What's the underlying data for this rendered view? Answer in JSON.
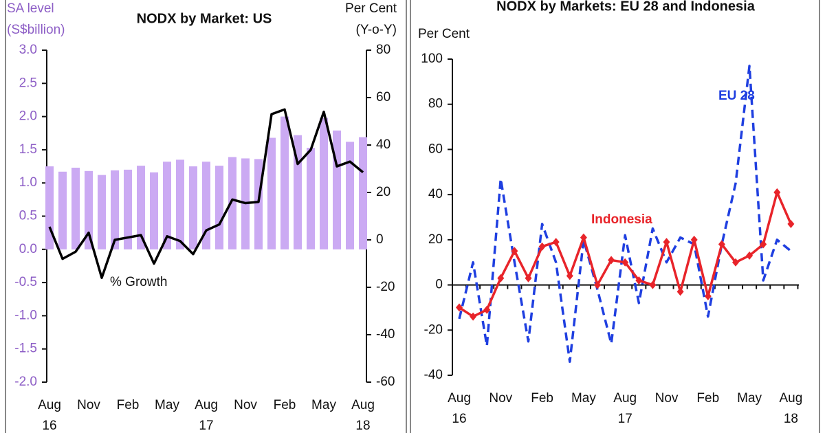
{
  "chart_data": [
    {
      "type": "combo",
      "title": "NODX by Market: US",
      "ylabel": [
        "SA level",
        "(S$billion)"
      ],
      "y2label": [
        "Per Cent",
        "(Y-o-Y)"
      ],
      "categories": [
        "Aug\n16",
        null,
        null,
        "Nov",
        null,
        null,
        "Feb",
        null,
        null,
        "May",
        null,
        null,
        "Aug\n17",
        null,
        null,
        "Nov",
        null,
        null,
        "Feb",
        null,
        null,
        "May",
        null,
        null,
        "Aug\n18"
      ],
      "ylim": [
        -2,
        3
      ],
      "yticks": [
        {
          "value": 3,
          "label": "3.0"
        },
        2.5,
        {
          "value": 2,
          "label": "2.0"
        },
        1.5,
        {
          "value": 1,
          "label": "1.0"
        },
        0.5,
        {
          "value": 0,
          "label": "0.0"
        },
        -0.5,
        {
          "value": -1,
          "label": "-1.0"
        },
        -1.5,
        {
          "value": -2,
          "label": "-2.0"
        }
      ],
      "y2lim": [
        -60,
        80
      ],
      "y2ticks": [
        80,
        60,
        40,
        20,
        0,
        -20,
        -40,
        -60
      ],
      "series": [
        {
          "type": "bar",
          "color": "#cbaaf3",
          "values": [
            1.25,
            1.17,
            1.23,
            1.18,
            1.12,
            1.19,
            1.2,
            1.26,
            1.16,
            1.32,
            1.35,
            1.25,
            1.32,
            1.26,
            1.39,
            1.37,
            1.36,
            1.68,
            2.0,
            1.72,
            1.53,
            1.98,
            1.79,
            1.62,
            1.69
          ]
        },
        {
          "type": "line",
          "axis": "y2",
          "name": "% Growth",
          "color": "#000000",
          "values": [
            5.5,
            -8,
            -5,
            3,
            -16,
            0,
            1,
            2,
            -10,
            1.5,
            -0.5,
            -6,
            4,
            6.5,
            17,
            15.5,
            16,
            53,
            55,
            32,
            38,
            54,
            31,
            33,
            28.5
          ]
        }
      ]
    },
    {
      "type": "line",
      "title": "NODX by Markets: EU 28 and Indonesia",
      "ylabel": [
        "Per Cent"
      ],
      "categories": [
        "Aug\n16",
        null,
        null,
        "Nov",
        null,
        null,
        "Feb",
        null,
        null,
        "May",
        null,
        null,
        "Aug\n17",
        null,
        null,
        "Nov",
        null,
        null,
        "Feb",
        null,
        null,
        "May",
        null,
        null,
        "Aug\n18"
      ],
      "ylim": [
        -40,
        100
      ],
      "yticks": [
        100,
        80,
        60,
        40,
        20,
        0,
        -20,
        -40
      ],
      "series": [
        {
          "name": "EU 28",
          "color": "#1f3fe0",
          "dash": true,
          "values": [
            -15,
            10,
            -27,
            47,
            10,
            -25,
            27,
            10,
            -34,
            20,
            -2,
            -26,
            22,
            -8,
            25,
            10,
            21,
            18,
            -14,
            18,
            45,
            97,
            2,
            20,
            15
          ]
        },
        {
          "name": "Indonesia",
          "color": "#e8242a",
          "marker": "diamond",
          "values": [
            -10,
            -14,
            -11,
            3,
            15,
            3,
            17,
            19,
            4,
            21,
            0,
            11,
            10,
            2,
            0,
            19,
            -3,
            20,
            -5,
            18,
            10,
            13,
            18,
            41,
            27
          ]
        }
      ]
    }
  ]
}
